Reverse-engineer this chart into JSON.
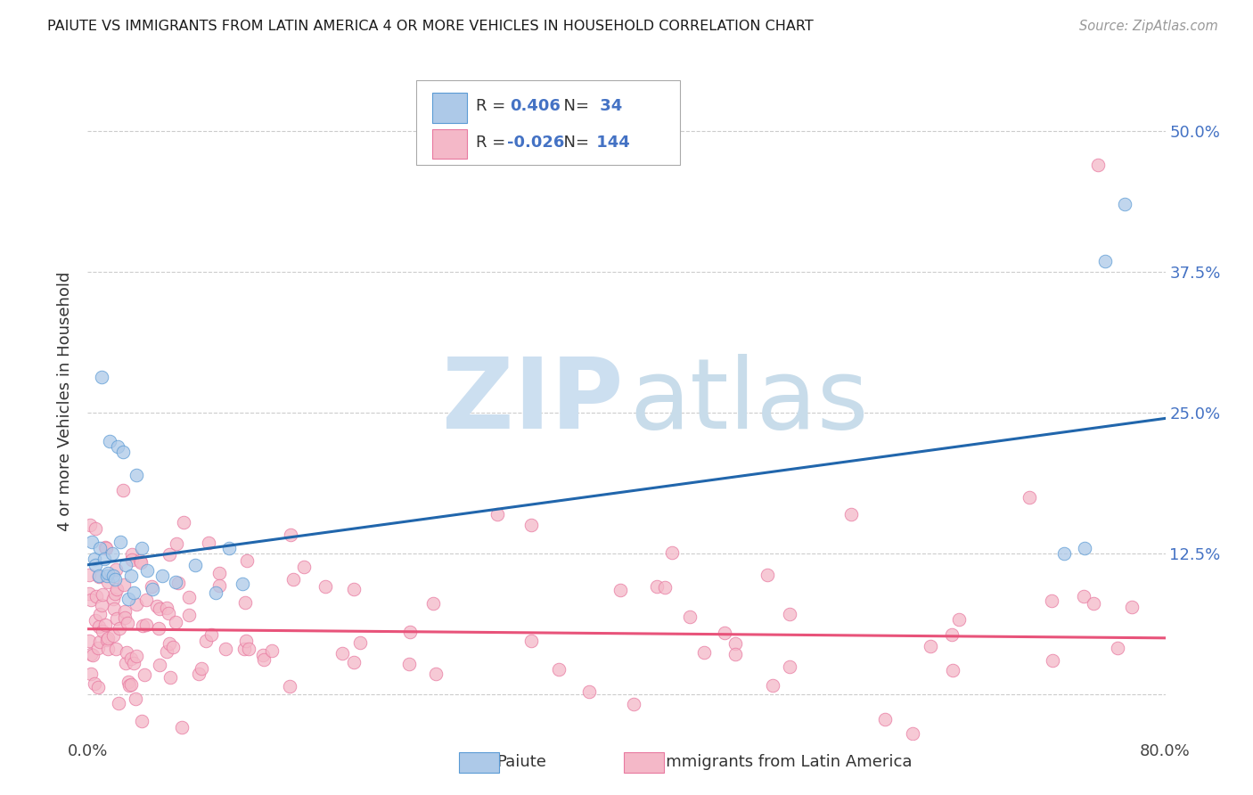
{
  "title": "PAIUTE VS IMMIGRANTS FROM LATIN AMERICA 4 OR MORE VEHICLES IN HOUSEHOLD CORRELATION CHART",
  "source": "Source: ZipAtlas.com",
  "ylabel": "4 or more Vehicles in Household",
  "xlim": [
    0.0,
    0.8
  ],
  "ylim": [
    -0.04,
    0.56
  ],
  "blue_R": 0.406,
  "blue_N": 34,
  "pink_R": -0.026,
  "pink_N": 144,
  "blue_dot_color": "#adc9e8",
  "pink_dot_color": "#f4b8c8",
  "blue_edge_color": "#5b9bd5",
  "pink_edge_color": "#e879a0",
  "blue_line_color": "#2166ac",
  "pink_line_color": "#e8537a",
  "legend_blue_label": "Paiute",
  "legend_pink_label": "Immigrants from Latin America",
  "watermark_zip_color": "#ccdff0",
  "watermark_atlas_color": "#c8dcea",
  "background_color": "#ffffff",
  "grid_color": "#cccccc",
  "title_color": "#1a1a1a",
  "right_tick_color": "#4472c4",
  "blue_line_x": [
    0.0,
    0.8
  ],
  "blue_line_y": [
    0.115,
    0.245
  ],
  "pink_line_x": [
    0.0,
    0.8
  ],
  "pink_line_y": [
    0.058,
    0.05
  ],
  "ytick_positions": [
    0.0,
    0.125,
    0.25,
    0.375,
    0.5
  ],
  "ytick_labels": [
    "",
    "12.5%",
    "25.0%",
    "37.5%",
    "50.0%"
  ],
  "xtick_positions": [
    0.0,
    0.2,
    0.4,
    0.6,
    0.8
  ],
  "xtick_labels": [
    "0.0%",
    "",
    "",
    "",
    "80.0%"
  ]
}
